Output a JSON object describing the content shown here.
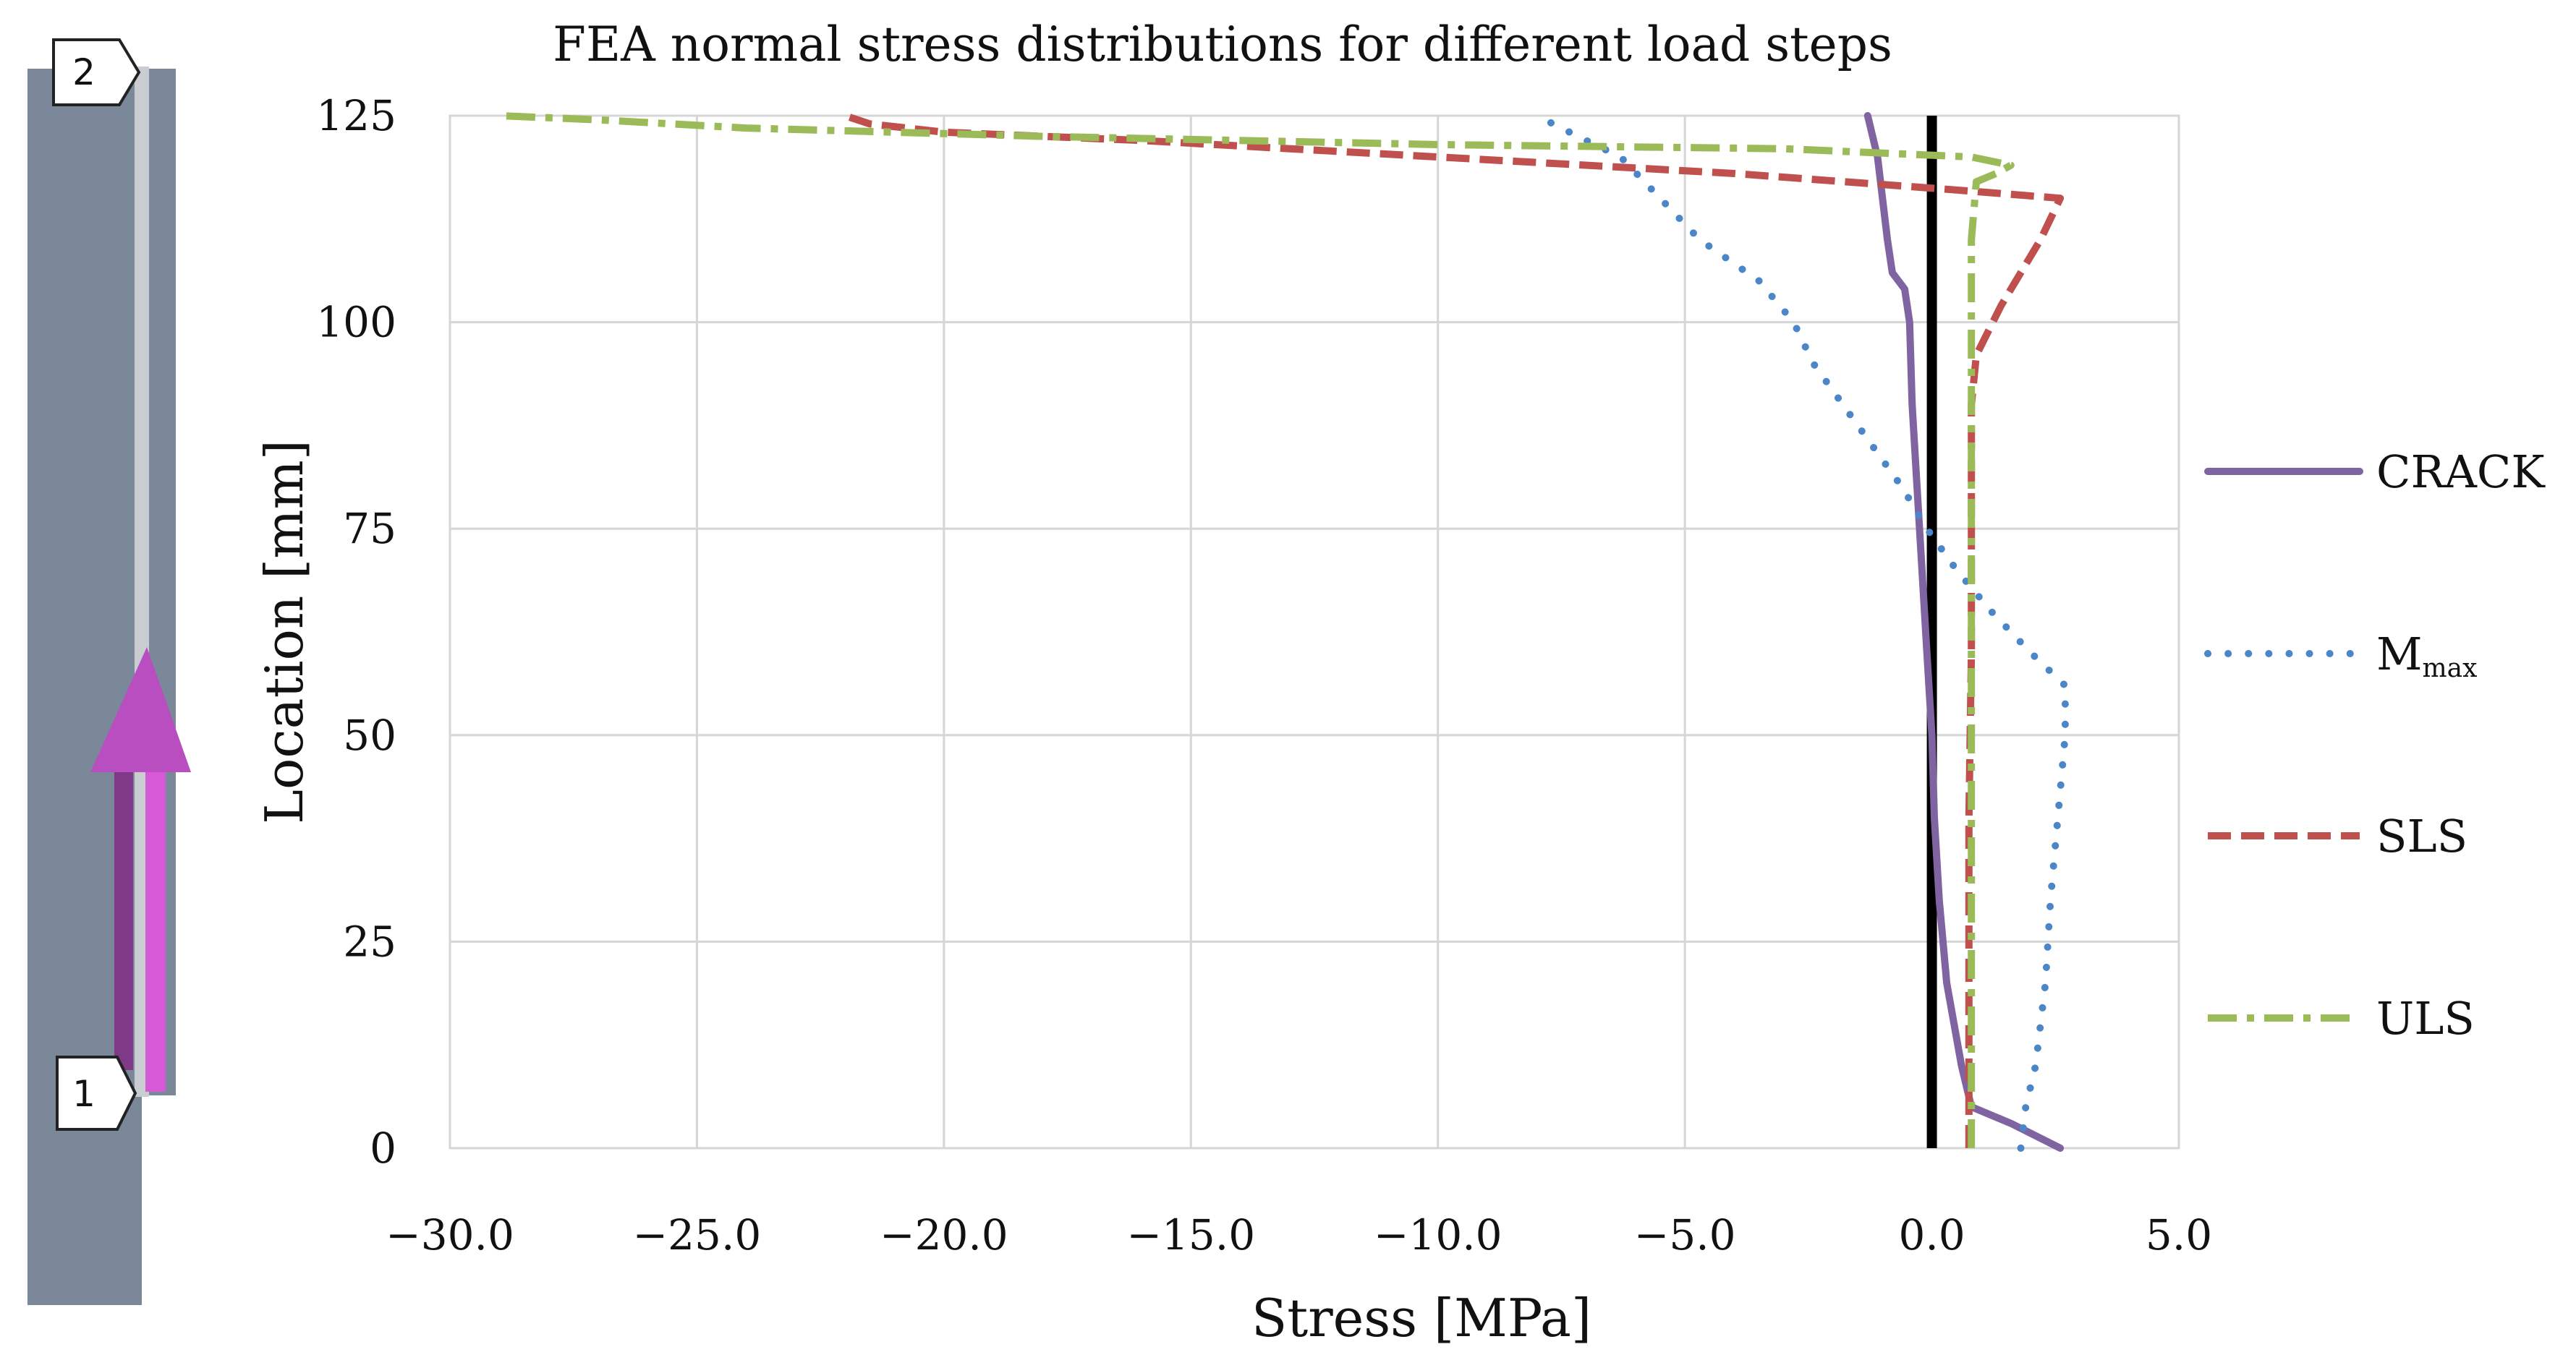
{
  "chart_data": {
    "type": "line",
    "title": "FEA normal stress distributions for different load steps",
    "xlabel": "Stress [MPa]",
    "ylabel": "Location [mm]",
    "xlim": [
      -30.0,
      5.0
    ],
    "ylim": [
      0,
      125
    ],
    "xticks": [
      -30,
      -25,
      -20,
      -15,
      -10,
      -5,
      0,
      5
    ],
    "xtick_labels": [
      "−30.0",
      "−25.0",
      "−20.0",
      "−15.0",
      "−10.0",
      "−5.0",
      "0.0",
      "5.0"
    ],
    "yticks": [
      0,
      25,
      50,
      75,
      100,
      125
    ],
    "ytick_labels": [
      "0",
      "25",
      "50",
      "75",
      "100",
      "125"
    ],
    "grid": true,
    "legend_position": "right",
    "zero_line_color": "#000000",
    "series": [
      {
        "name": "CRACK",
        "label_main": "CRACK",
        "label_sub": "",
        "color": "#8064a2",
        "dash": "solid",
        "points": [
          [
            2.6,
            0
          ],
          [
            1.6,
            3
          ],
          [
            0.8,
            5
          ],
          [
            0.6,
            10
          ],
          [
            0.3,
            20
          ],
          [
            0.15,
            30
          ],
          [
            0.05,
            40
          ],
          [
            0.0,
            50
          ],
          [
            -0.1,
            60
          ],
          [
            -0.2,
            70
          ],
          [
            -0.3,
            80
          ],
          [
            -0.4,
            90
          ],
          [
            -0.45,
            100
          ],
          [
            -0.55,
            104
          ],
          [
            -0.8,
            106
          ],
          [
            -0.9,
            110
          ],
          [
            -1.0,
            115
          ],
          [
            -1.1,
            120
          ],
          [
            -1.3,
            125
          ]
        ]
      },
      {
        "name": "Mmax",
        "label_main": "M",
        "label_sub": "max",
        "color": "#4a86c8",
        "dash": "dotted",
        "points": [
          [
            1.8,
            0
          ],
          [
            1.9,
            5
          ],
          [
            2.1,
            10
          ],
          [
            2.3,
            20
          ],
          [
            2.4,
            30
          ],
          [
            2.55,
            40
          ],
          [
            2.7,
            50
          ],
          [
            2.7,
            56
          ],
          [
            2.0,
            60
          ],
          [
            1.2,
            65
          ],
          [
            0.5,
            70
          ],
          [
            -0.1,
            75
          ],
          [
            -0.6,
            80
          ],
          [
            -1.2,
            85
          ],
          [
            -1.8,
            90
          ],
          [
            -2.4,
            95
          ],
          [
            -2.8,
            100
          ],
          [
            -3.5,
            105
          ],
          [
            -4.7,
            110
          ],
          [
            -5.5,
            115
          ],
          [
            -6.3,
            120
          ],
          [
            -7.0,
            122
          ],
          [
            -8.0,
            125
          ]
        ]
      },
      {
        "name": "SLS",
        "label_main": "SLS",
        "label_sub": "",
        "color": "#c0504d",
        "dash": "dashed",
        "points": [
          [
            0.75,
            0
          ],
          [
            0.75,
            20
          ],
          [
            0.75,
            40
          ],
          [
            0.8,
            60
          ],
          [
            0.8,
            80
          ],
          [
            0.8,
            90
          ],
          [
            0.9,
            96
          ],
          [
            1.4,
            102
          ],
          [
            2.2,
            110
          ],
          [
            2.6,
            115
          ],
          [
            0.5,
            116
          ],
          [
            -4.0,
            118
          ],
          [
            -10.0,
            120
          ],
          [
            -16.0,
            122
          ],
          [
            -20.0,
            123
          ],
          [
            -21.5,
            124
          ],
          [
            -22.0,
            125
          ]
        ]
      },
      {
        "name": "ULS",
        "label_main": "ULS",
        "label_sub": "",
        "color": "#9bbb59",
        "dash": "dashdot",
        "points": [
          [
            0.8,
            0
          ],
          [
            0.8,
            30
          ],
          [
            0.8,
            60
          ],
          [
            0.8,
            90
          ],
          [
            0.8,
            110
          ],
          [
            0.9,
            117
          ],
          [
            1.3,
            118
          ],
          [
            1.6,
            119
          ],
          [
            0.8,
            120
          ],
          [
            -3.0,
            121
          ],
          [
            -10.0,
            121.5
          ],
          [
            -18.0,
            122.5
          ],
          [
            -24.0,
            123.5
          ],
          [
            -27.0,
            124.5
          ],
          [
            -29.0,
            125
          ]
        ]
      }
    ]
  },
  "diagram": {
    "node_top_label": "2",
    "node_bottom_label": "1"
  }
}
